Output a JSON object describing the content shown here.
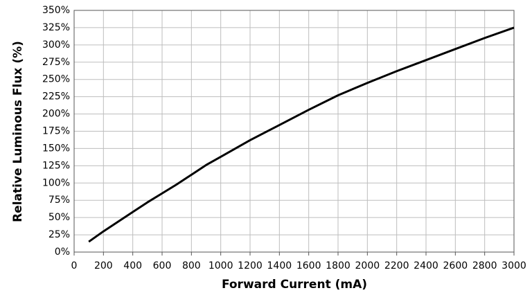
{
  "chart_data": {
    "type": "line",
    "xlabel": "Forward Current (mA)",
    "ylabel": "Relative Luminous Flux (%)",
    "x": [
      100,
      200,
      300,
      400,
      500,
      600,
      700,
      800,
      900,
      1000,
      1200,
      1400,
      1600,
      1800,
      2000,
      2200,
      2400,
      2600,
      2800,
      3000
    ],
    "values": [
      15,
      30,
      44,
      58,
      72,
      85,
      98,
      112,
      126,
      138,
      162,
      184,
      206,
      227,
      245,
      262,
      278,
      294,
      310,
      325
    ],
    "color": "#000000",
    "xlim": [
      0,
      3000
    ],
    "xticks": [
      0,
      200,
      400,
      600,
      800,
      1000,
      1200,
      1400,
      1600,
      1800,
      2000,
      2200,
      2400,
      2600,
      2800,
      3000
    ],
    "ylim": [
      0,
      350
    ],
    "yticks": [
      {
        "value": 0,
        "label": "0%"
      },
      {
        "value": 25,
        "label": "25%"
      },
      {
        "value": 50,
        "label": "50%"
      },
      {
        "value": 75,
        "label": "75%"
      },
      {
        "value": 100,
        "label": "100%"
      },
      {
        "value": 125,
        "label": "125%"
      },
      {
        "value": 150,
        "label": "150%"
      },
      {
        "value": 175,
        "label": "175%"
      },
      {
        "value": 200,
        "label": "200%"
      },
      {
        "value": 225,
        "label": "225%"
      },
      {
        "value": 250,
        "label": "250%"
      },
      {
        "value": 275,
        "label": "275%"
      },
      {
        "value": 300,
        "label": "300%"
      },
      {
        "value": 325,
        "label": "325%"
      },
      {
        "value": 350,
        "label": "350%"
      }
    ],
    "grid": true
  }
}
